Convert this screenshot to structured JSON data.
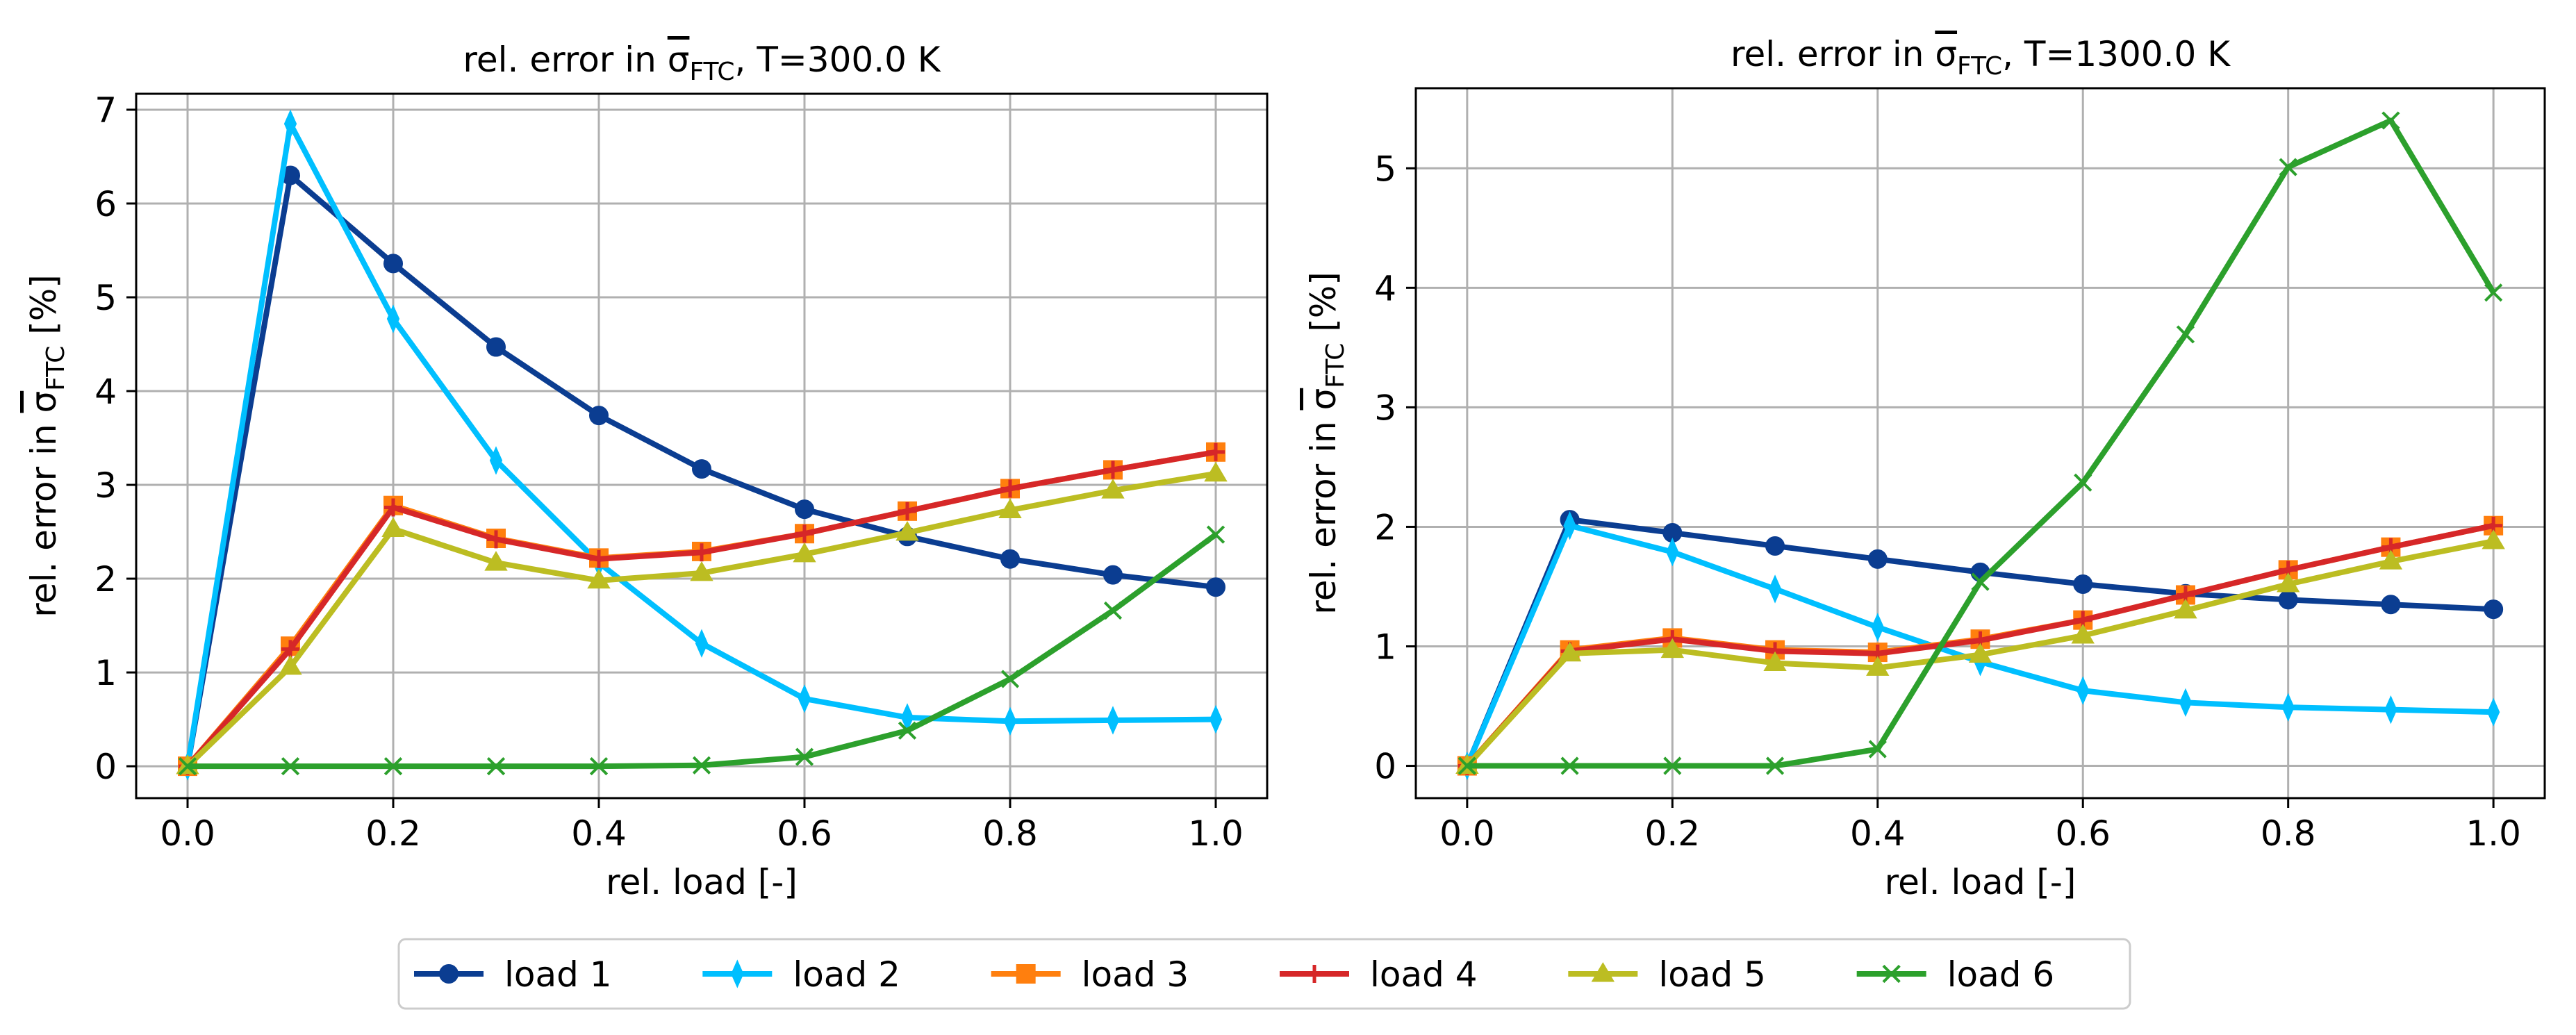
{
  "chart_data": [
    {
      "type": "line",
      "title": "rel. error in σ̄FTC, T=300.0 K",
      "title_parts": {
        "prefix": "rel. error in ",
        "symbol": "σ",
        "subscript": "FTC",
        "suffix": ", T=300.0 K"
      },
      "xlabel": "rel. load [-]",
      "ylabel": "rel. error in σ̄FTC [%]",
      "ylabel_parts": {
        "prefix": "rel. error in ",
        "symbol": "σ",
        "subscript": "FTC",
        "suffix": " [%]"
      },
      "xlim": [
        -0.05,
        1.05
      ],
      "ylim": [
        -0.34,
        7.17
      ],
      "xticks": [
        0.0,
        0.2,
        0.4,
        0.6,
        0.8,
        1.0
      ],
      "xtick_labels": [
        "0.0",
        "0.2",
        "0.4",
        "0.6",
        "0.8",
        "1.0"
      ],
      "yticks": [
        0,
        1,
        2,
        3,
        4,
        5,
        6,
        7
      ],
      "ytick_labels": [
        "0",
        "1",
        "2",
        "3",
        "4",
        "5",
        "6",
        "7"
      ],
      "grid": true,
      "x": [
        0.0,
        0.1,
        0.2,
        0.3,
        0.4,
        0.5,
        0.6,
        0.7,
        0.8,
        0.9,
        1.0
      ],
      "series": [
        {
          "name": "load 1",
          "values": [
            0.0,
            6.3,
            5.36,
            4.47,
            3.74,
            3.17,
            2.74,
            2.45,
            2.21,
            2.04,
            1.91
          ]
        },
        {
          "name": "load 2",
          "values": [
            0.0,
            6.85,
            4.77,
            3.26,
            2.17,
            1.31,
            0.72,
            0.52,
            0.48,
            0.49,
            0.5
          ]
        },
        {
          "name": "load 3",
          "values": [
            0.0,
            1.28,
            2.78,
            2.43,
            2.22,
            2.29,
            2.48,
            2.72,
            2.96,
            3.16,
            3.35
          ]
        },
        {
          "name": "load 4",
          "values": [
            0.0,
            1.25,
            2.76,
            2.42,
            2.21,
            2.28,
            2.48,
            2.72,
            2.96,
            3.16,
            3.35
          ]
        },
        {
          "name": "load 5",
          "values": [
            0.0,
            1.06,
            2.53,
            2.17,
            1.98,
            2.06,
            2.26,
            2.49,
            2.73,
            2.94,
            3.12
          ]
        },
        {
          "name": "load 6",
          "values": [
            0.0,
            0.0,
            0.0,
            0.0,
            0.0,
            0.01,
            0.1,
            0.38,
            0.93,
            1.66,
            2.47
          ]
        }
      ]
    },
    {
      "type": "line",
      "title": "rel. error in σ̄FTC, T=1300.0 K",
      "title_parts": {
        "prefix": "rel. error in ",
        "symbol": "σ",
        "subscript": "FTC",
        "suffix": ", T=1300.0 K"
      },
      "xlabel": "rel. load [-]",
      "ylabel": "rel. error in σ̄FTC [%]",
      "ylabel_parts": {
        "prefix": "rel. error in ",
        "symbol": "σ",
        "subscript": "FTC",
        "suffix": " [%]"
      },
      "xlim": [
        -0.05,
        1.05
      ],
      "ylim": [
        -0.27,
        5.67
      ],
      "xticks": [
        0.0,
        0.2,
        0.4,
        0.6,
        0.8,
        1.0
      ],
      "xtick_labels": [
        "0.0",
        "0.2",
        "0.4",
        "0.6",
        "0.8",
        "1.0"
      ],
      "yticks": [
        0,
        1,
        2,
        3,
        4,
        5
      ],
      "ytick_labels": [
        "0",
        "1",
        "2",
        "3",
        "4",
        "5"
      ],
      "grid": true,
      "x": [
        0.0,
        0.1,
        0.2,
        0.3,
        0.4,
        0.5,
        0.6,
        0.7,
        0.8,
        0.9,
        1.0
      ],
      "series": [
        {
          "name": "load 1",
          "values": [
            0.0,
            2.06,
            1.95,
            1.84,
            1.73,
            1.62,
            1.52,
            1.44,
            1.39,
            1.35,
            1.31
          ]
        },
        {
          "name": "load 2",
          "values": [
            0.0,
            2.01,
            1.79,
            1.48,
            1.16,
            0.87,
            0.63,
            0.53,
            0.49,
            0.47,
            0.45
          ]
        },
        {
          "name": "load 3",
          "values": [
            0.0,
            0.97,
            1.07,
            0.97,
            0.95,
            1.06,
            1.22,
            1.43,
            1.64,
            1.83,
            2.01
          ]
        },
        {
          "name": "load 4",
          "values": [
            0.0,
            0.96,
            1.06,
            0.96,
            0.94,
            1.05,
            1.22,
            1.43,
            1.64,
            1.83,
            2.01
          ]
        },
        {
          "name": "load 5",
          "values": [
            0.0,
            0.94,
            0.97,
            0.86,
            0.82,
            0.93,
            1.09,
            1.3,
            1.52,
            1.71,
            1.88
          ]
        },
        {
          "name": "load 6",
          "values": [
            0.0,
            0.0,
            0.0,
            0.0,
            0.14,
            1.54,
            2.37,
            3.61,
            5.01,
            5.4,
            3.96
          ]
        }
      ]
    }
  ],
  "legend": {
    "placement": "bottom-center",
    "entries": [
      {
        "name": "load 1",
        "color": "#0b3d91",
        "marker": "circle"
      },
      {
        "name": "load 2",
        "color": "#00bfff",
        "marker": "thin-diamond"
      },
      {
        "name": "load 3",
        "color": "#ff7f0e",
        "marker": "square"
      },
      {
        "name": "load 4",
        "color": "#d62728",
        "marker": "plus"
      },
      {
        "name": "load 5",
        "color": "#bcbd22",
        "marker": "triangle-up"
      },
      {
        "name": "load 6",
        "color": "#2ca02c",
        "marker": "x"
      }
    ]
  },
  "styles": {
    "grid_color": "#b0b0b0",
    "axis_color": "#000000"
  }
}
